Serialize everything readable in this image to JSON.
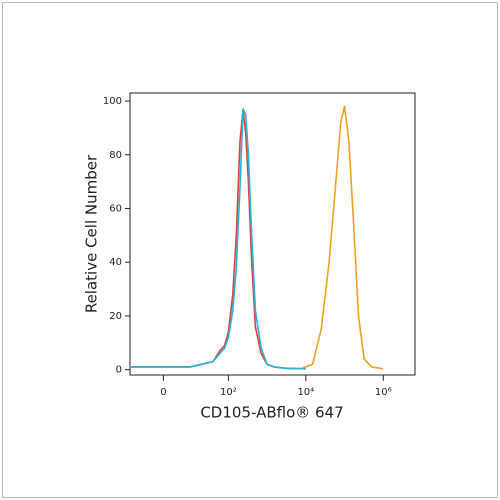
{
  "chart_data": {
    "type": "line",
    "x_label": "CD105-ABflo® 647",
    "y_label": "Relative Cell Number",
    "xscale": "biexponential",
    "xlim": [
      -15,
      6600000
    ],
    "xticks": [
      0,
      {
        "value": 100,
        "label": "10²"
      },
      {
        "value": 10000,
        "label": "10⁴"
      },
      {
        "value": 1000000,
        "label": "10⁶"
      }
    ],
    "ylim": [
      -2,
      103
    ],
    "yticks": [
      0,
      20,
      40,
      60,
      80,
      100
    ],
    "series": [
      {
        "color": "#e0403a",
        "x": [
          -15,
          -5,
          0,
          10,
          20,
          40,
          60,
          80,
          100,
          130,
          160,
          200,
          240,
          280,
          330,
          400,
          500,
          700,
          1000,
          1500,
          3000,
          10000
        ],
        "values": [
          1,
          1,
          1,
          1,
          2,
          3,
          7,
          9,
          14,
          28,
          50,
          85,
          97,
          88,
          70,
          40,
          16,
          6,
          2,
          1,
          0.5,
          0.3
        ]
      },
      {
        "color": "#25b4d6",
        "x": [
          -15,
          -5,
          0,
          10,
          20,
          40,
          60,
          80,
          100,
          130,
          160,
          200,
          240,
          280,
          330,
          400,
          500,
          700,
          1000,
          1500,
          3000,
          10000
        ],
        "values": [
          1,
          1,
          1,
          1,
          2,
          3,
          6,
          8,
          12,
          22,
          38,
          68,
          97,
          95,
          80,
          50,
          22,
          8,
          2,
          1,
          0.5,
          0.3
        ]
      },
      {
        "color": "#f0a020",
        "x": [
          8000,
          15000,
          25000,
          40000,
          60000,
          80000,
          100000,
          130000,
          170000,
          230000,
          320000,
          500000,
          1000000
        ],
        "values": [
          0.5,
          2,
          15,
          40,
          70,
          92,
          98,
          85,
          55,
          20,
          4,
          1,
          0.3
        ]
      }
    ]
  }
}
